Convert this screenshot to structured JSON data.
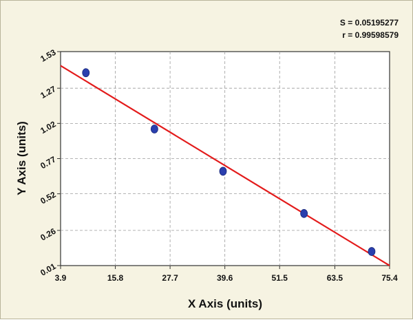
{
  "stats": {
    "s_text": "S = 0.05195277",
    "r_text": "r = 0.99598579"
  },
  "chart_data": {
    "type": "scatter",
    "title": "",
    "xlabel": "X Axis (units)",
    "ylabel": "Y Axis (units)",
    "xlim": [
      3.9,
      75.4
    ],
    "ylim": [
      0.01,
      1.53
    ],
    "x_ticks": [
      "3.9",
      "15.8",
      "27.7",
      "39.6",
      "51.5",
      "63.5",
      "75.4"
    ],
    "y_ticks": [
      "0.01",
      "0.26",
      "0.52",
      "0.77",
      "1.02",
      "1.27",
      "1.53"
    ],
    "grid": true,
    "series": [
      {
        "points": [
          {
            "x": 9.4,
            "y": 1.38
          },
          {
            "x": 24.3,
            "y": 0.98
          },
          {
            "x": 39.2,
            "y": 0.68
          },
          {
            "x": 56.8,
            "y": 0.38
          },
          {
            "x": 71.5,
            "y": 0.11
          }
        ],
        "marker_color": "#2a3fae"
      }
    ],
    "fit_line": {
      "start": {
        "x": 3.9,
        "y": 1.43
      },
      "end": {
        "x": 75.4,
        "y": 0.01
      },
      "color": "#e31b1b"
    }
  }
}
